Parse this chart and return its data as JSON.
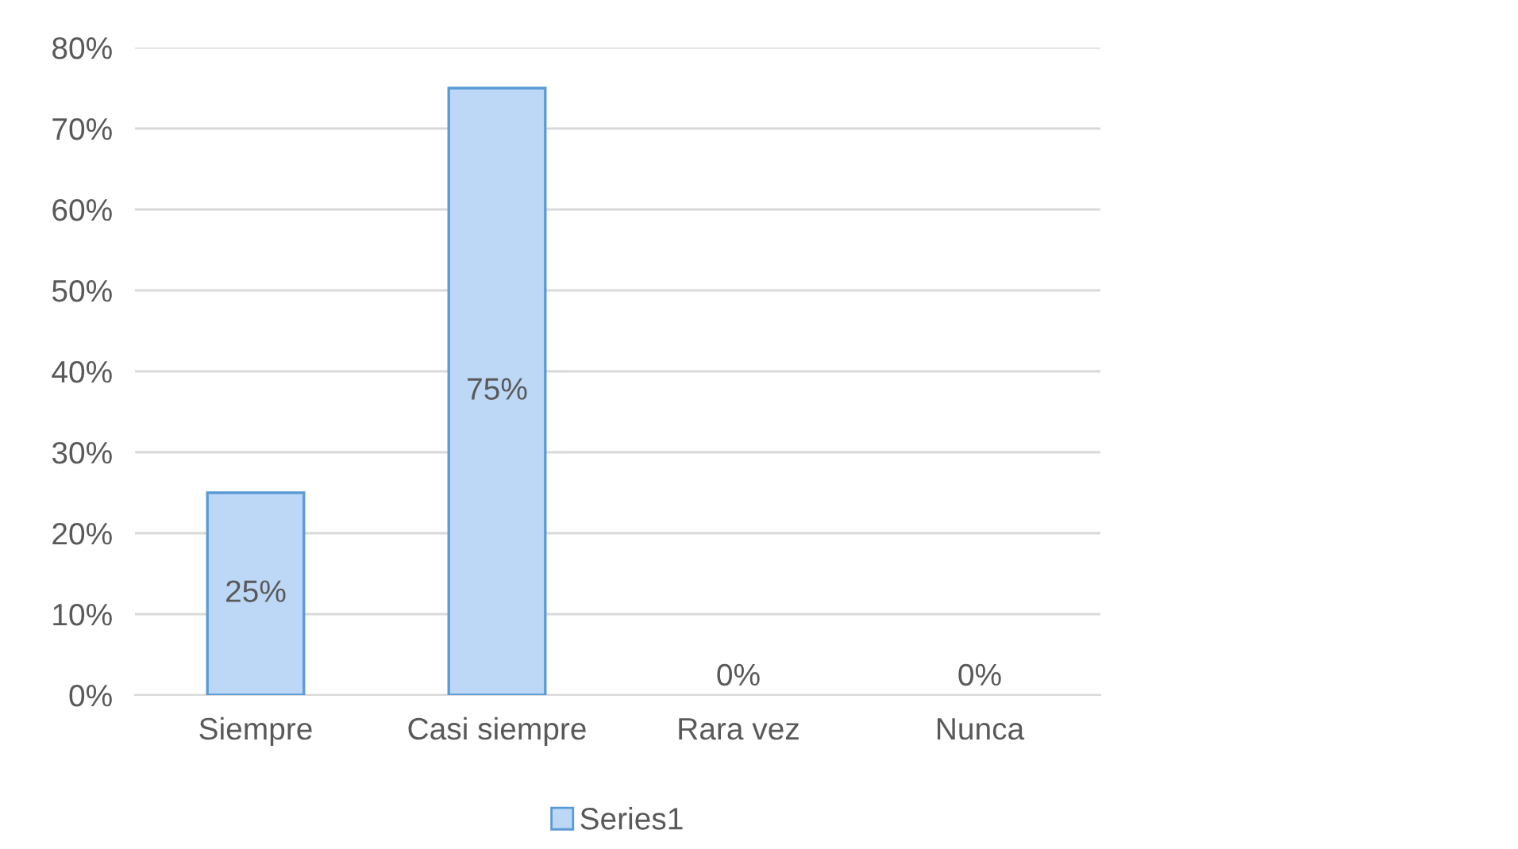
{
  "chart_data": {
    "type": "bar",
    "categories": [
      "Siempre",
      "Casi siempre",
      "Rara vez",
      "Nunca"
    ],
    "series": [
      {
        "name": "Series1",
        "color": "#bdd7f6",
        "values": [
          25,
          75,
          0,
          0
        ],
        "value_labels": [
          "25%",
          "75%",
          "0%",
          "0%"
        ]
      }
    ],
    "ylim": [
      0,
      80
    ],
    "yticks": [
      {
        "value": 0,
        "label": "0%"
      },
      {
        "value": 10,
        "label": "10%"
      },
      {
        "value": 20,
        "label": "20%"
      },
      {
        "value": 30,
        "label": "30%"
      },
      {
        "value": 40,
        "label": "40%"
      },
      {
        "value": 50,
        "label": "50%"
      },
      {
        "value": 60,
        "label": "60%"
      },
      {
        "value": 70,
        "label": "70%"
      },
      {
        "value": 80,
        "label": "80%"
      }
    ],
    "grid": "y",
    "legend": "bottom"
  }
}
